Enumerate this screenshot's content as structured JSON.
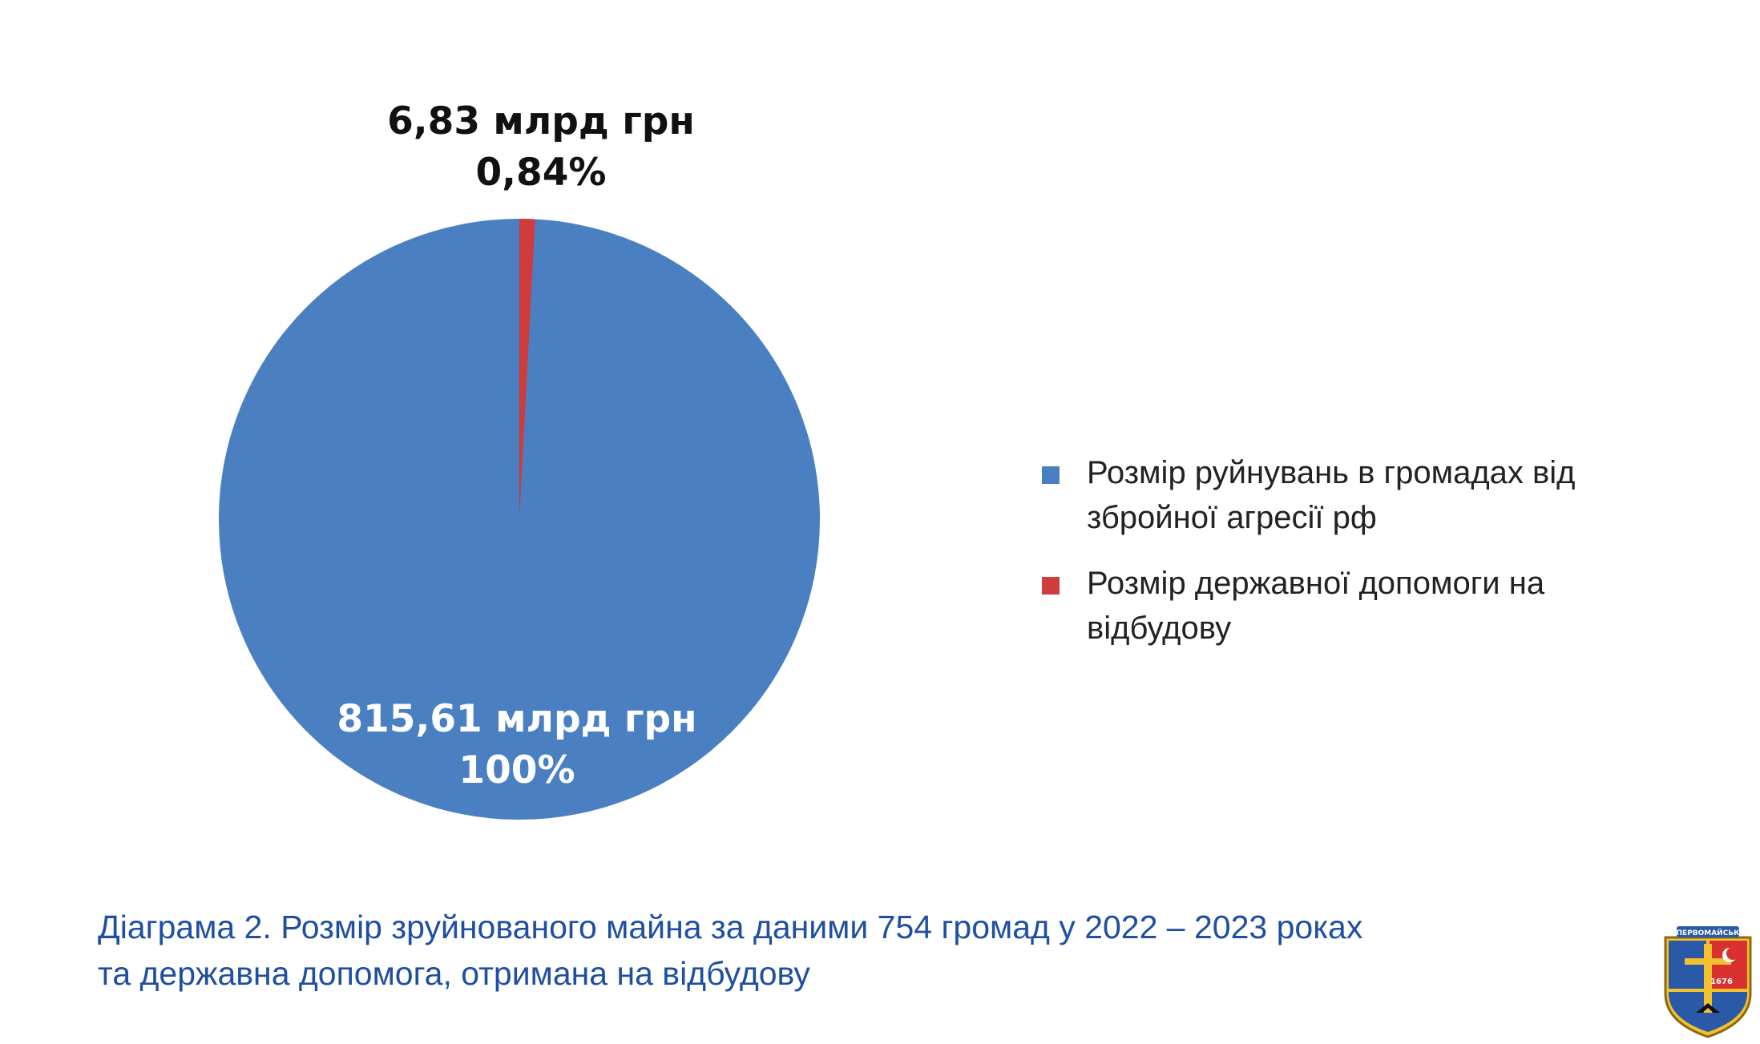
{
  "chart_data": {
    "type": "pie",
    "slices": [
      {
        "legend": "Розмір руйнувань в громадах від збройної агресії рф",
        "value_label": "815,61 млрд грн",
        "percent_label": "100%",
        "value": 815.61,
        "color": "#4a80c1"
      },
      {
        "legend": "Розмір державної допомоги на відбудову",
        "value_label": "6,83 млрд грн",
        "percent_label": "0,84%",
        "value": 6.83,
        "color": "#d03b3b"
      }
    ],
    "legend_position": "right"
  },
  "caption": {
    "line1": "Діаграма 2. Розмір зруйнованого майна за даними 754 громад у 2022 – 2023 роках",
    "line2": "та державна допомога, отримана на відбудову"
  },
  "emblem": {
    "text": "ПЕРВОМАЙСЬК",
    "year": "1676",
    "icon": "city-coat-of-arms"
  }
}
